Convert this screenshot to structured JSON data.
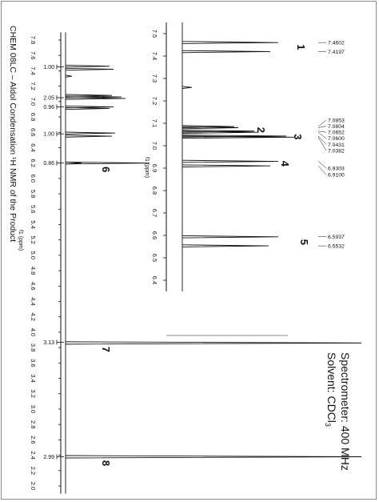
{
  "caption": "CHEM 08LC – Aldol Condensation  ¹H NMR of the Product",
  "spectrometer": {
    "label": "Spectrometer: 400 MHz",
    "solvent": "Solvent: CDCl",
    "solvent_sub": "3"
  },
  "chart_data": [
    {
      "type": "line",
      "title": "",
      "axis_label": "f1 (ppm)",
      "xlabel": "f1 (ppm)",
      "xlim": [
        7.9,
        1.9
      ],
      "ticks": [
        "7.8",
        "7.6",
        "7.4",
        "7.2",
        "7.0",
        "6.8",
        "6.6",
        "6.4",
        "6.2",
        "6.0",
        "5.8",
        "5.6",
        "5.4",
        "5.2",
        "5.0",
        "4.8",
        "4.6",
        "4.4",
        "4.2",
        "4.0",
        "3.8",
        "3.6",
        "3.4",
        "3.2",
        "3.0",
        "2.8",
        "2.6",
        "2.4",
        "2.2",
        "2.0"
      ],
      "peaks": [
        {
          "label": "6",
          "ppm": 7.02,
          "integral": "0.86"
        },
        {
          "label": "7",
          "ppm": 3.86,
          "integral": "3.13"
        },
        {
          "label": "8",
          "ppm": 2.38,
          "integral": "2.99"
        }
      ],
      "integrals": [
        {
          "ppm": 7.45,
          "value": "1.00"
        },
        {
          "ppm": 7.05,
          "value": "2.05"
        },
        {
          "ppm": 6.93,
          "value": "0.96"
        },
        {
          "ppm": 6.58,
          "value": "1.00"
        },
        {
          "ppm": 6.2,
          "value": "0.86"
        },
        {
          "ppm": 3.87,
          "value": "3.13"
        },
        {
          "ppm": 2.38,
          "value": "2.99"
        }
      ]
    },
    {
      "type": "line",
      "title": "",
      "axis_label": "f1 (ppm)",
      "xlabel": "f1 (ppm)",
      "xlim": [
        7.55,
        6.35
      ],
      "ticks": [
        "7.5",
        "7.4",
        "7.3",
        "7.2",
        "7.1",
        "7.0",
        "6.9",
        "6.8",
        "6.7",
        "6.6",
        "6.5",
        "6.4"
      ],
      "peaks": [
        {
          "label": "1",
          "ppm": 7.44
        },
        {
          "label": "2",
          "ppm": 7.07
        },
        {
          "label": "3",
          "ppm": 7.04
        },
        {
          "label": "4",
          "ppm": 6.92
        },
        {
          "label": "5",
          "ppm": 6.57
        }
      ],
      "shift_labels": [
        "7.4602",
        "7.4197",
        "7.0853",
        "7.0804",
        "7.0652",
        "7.0600",
        "7.0431",
        "7.0382",
        "6.9303",
        "6.9100",
        "6.5937",
        "6.5532"
      ]
    }
  ]
}
